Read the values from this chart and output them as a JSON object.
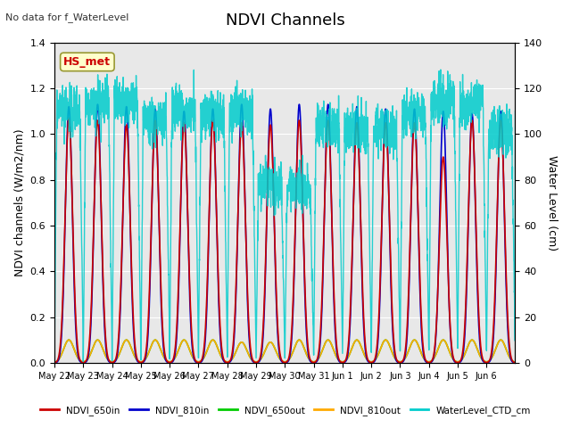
{
  "title": "NDVI Channels",
  "subtitle": "No data for f_WaterLevel",
  "ylabel_left": "NDVI channels (W/m2/nm)",
  "ylabel_right": "Water Level (cm)",
  "ylim_left": [
    0.0,
    1.4
  ],
  "ylim_right": [
    0,
    140
  ],
  "background_color": "#e8e8e8",
  "series": {
    "NDVI_650in": {
      "color": "#cc0000",
      "lw": 1.2
    },
    "NDVI_810in": {
      "color": "#0000cc",
      "lw": 1.2
    },
    "NDVI_650out": {
      "color": "#00cc00",
      "lw": 1.2
    },
    "NDVI_810out": {
      "color": "#ffaa00",
      "lw": 1.2
    },
    "WaterLevel_CTD_cm": {
      "color": "#00cccc",
      "lw": 1.0
    }
  },
  "n_days": 16,
  "legend_label": "HS_met",
  "tick_labels": [
    "May 22",
    "May 23",
    "May 24",
    "May 25",
    "May 26",
    "May 27",
    "May 28",
    "May 29",
    "May 30",
    "May 31",
    "Jun 1",
    "Jun 2",
    "Jun 3",
    "Jun 4",
    "Jun 5",
    "Jun 6"
  ],
  "peaks_810in": [
    1.12,
    1.13,
    1.12,
    1.11,
    1.1,
    1.11,
    1.13,
    1.11,
    1.13,
    1.13,
    1.12,
    1.11,
    1.11,
    1.1,
    1.09,
    1.1
  ],
  "peaks_650in": [
    1.07,
    1.06,
    1.04,
    1.06,
    1.05,
    1.06,
    1.05,
    1.04,
    1.06,
    1.06,
    1.05,
    1.05,
    1.05,
    0.9,
    1.06,
    1.06
  ],
  "peaks_650out": [
    0.1,
    0.1,
    0.1,
    0.1,
    0.1,
    0.1,
    0.09,
    0.09,
    0.1,
    0.1,
    0.1,
    0.1,
    0.1,
    0.1,
    0.1,
    0.1
  ],
  "peaks_810out": [
    0.1,
    0.1,
    0.1,
    0.1,
    0.1,
    0.1,
    0.09,
    0.09,
    0.1,
    0.1,
    0.1,
    0.1,
    0.1,
    0.1,
    0.1,
    0.1
  ],
  "water_base": [
    110,
    113,
    114,
    107,
    110,
    108,
    109,
    79,
    77,
    103,
    103,
    102,
    108,
    115,
    114,
    101
  ]
}
